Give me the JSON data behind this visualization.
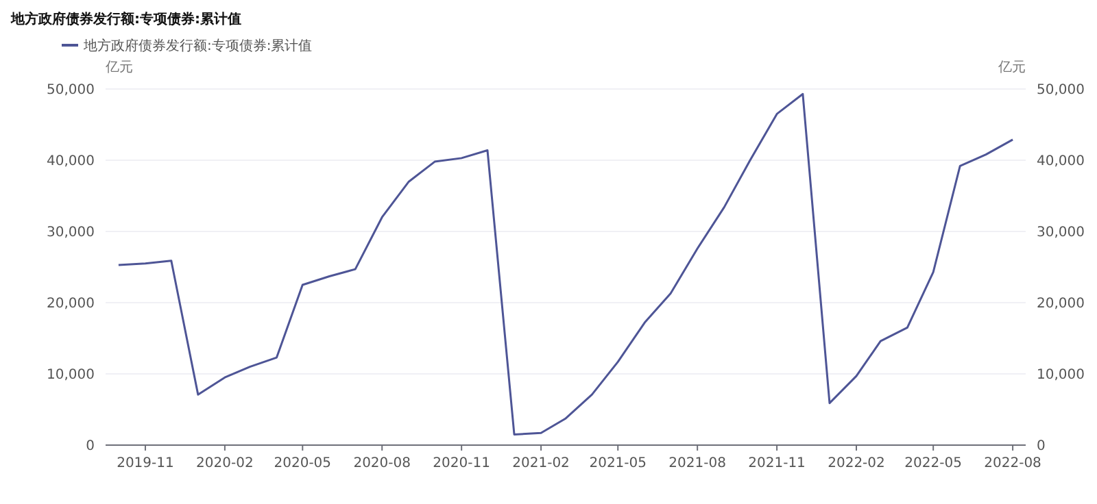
{
  "chart_data": {
    "type": "line",
    "title": "地方政府债券发行额:专项债券:累计值",
    "ylabel": "亿元",
    "y2label": "亿元",
    "x": [
      "2019-10",
      "2019-11",
      "2019-12",
      "2020-01",
      "2020-02",
      "2020-03",
      "2020-04",
      "2020-05",
      "2020-06",
      "2020-07",
      "2020-08",
      "2020-09",
      "2020-10",
      "2020-11",
      "2020-12",
      "2021-01",
      "2021-02",
      "2021-03",
      "2021-04",
      "2021-05",
      "2021-06",
      "2021-07",
      "2021-08",
      "2021-09",
      "2021-10",
      "2021-11",
      "2021-12",
      "2022-01",
      "2022-02",
      "2022-03",
      "2022-04",
      "2022-05",
      "2022-06",
      "2022-07",
      "2022-08"
    ],
    "series": [
      {
        "name": "地方政府债券发行额:专项债券:累计值",
        "color": "#4e5596",
        "values": [
          25300,
          25500,
          25900,
          7100,
          9500,
          11000,
          12300,
          22500,
          23700,
          24700,
          32000,
          37000,
          39800,
          40300,
          41400,
          1500,
          1700,
          3700,
          7100,
          11700,
          17200,
          21300,
          27600,
          33400,
          40000,
          46500,
          49300,
          5900,
          9700,
          14600,
          16500,
          24300,
          39200,
          40800,
          42900
        ]
      }
    ],
    "xlim": [
      "2019-09-16",
      "2022-08-16"
    ],
    "xticks": [
      "2019-11",
      "2020-02",
      "2020-05",
      "2020-08",
      "2020-11",
      "2021-02",
      "2021-05",
      "2021-08",
      "2021-11",
      "2022-02",
      "2022-05",
      "2022-08"
    ],
    "ylim": [
      0,
      50000
    ],
    "yticks": [
      {
        "value": 0,
        "label": "0"
      },
      {
        "value": 10000,
        "label": "10,000"
      },
      {
        "value": 20000,
        "label": "20,000"
      },
      {
        "value": 30000,
        "label": "30,000"
      },
      {
        "value": 40000,
        "label": "40,000"
      },
      {
        "value": 50000,
        "label": "50,000"
      }
    ],
    "y2lim": [
      0,
      50000
    ],
    "y2ticks": [
      {
        "value": 0,
        "label": "0"
      },
      {
        "value": 10000,
        "label": "10,000"
      },
      {
        "value": 20000,
        "label": "20,000"
      },
      {
        "value": 30000,
        "label": "30,000"
      },
      {
        "value": 40000,
        "label": "40,000"
      },
      {
        "value": 50000,
        "label": "50,000"
      }
    ],
    "grid": "y",
    "legend": "top left",
    "marker": "none",
    "line_style": "solid"
  }
}
